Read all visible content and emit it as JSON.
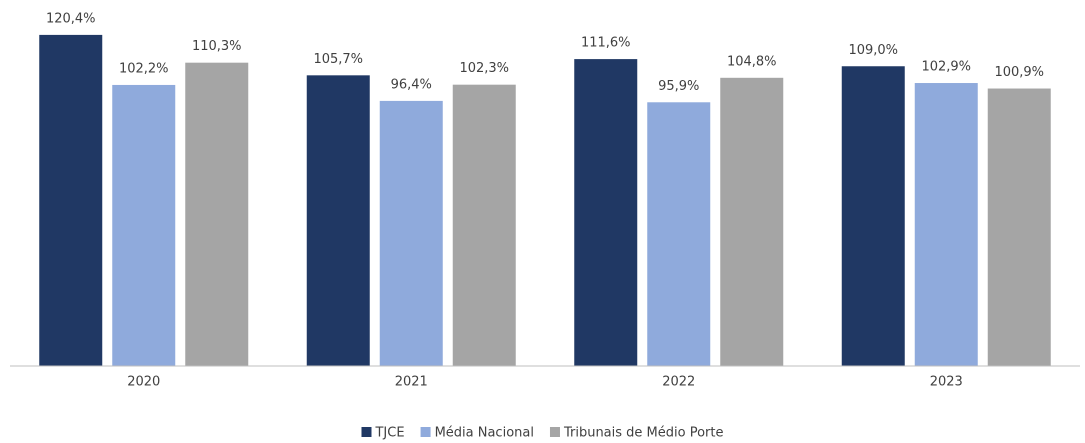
{
  "chart_data": {
    "type": "bar",
    "categories": [
      "2020",
      "2021",
      "2022",
      "2023"
    ],
    "series": [
      {
        "name": "TJCE",
        "color": "#203864",
        "values": [
          120.4,
          105.7,
          111.6,
          109.0
        ],
        "value_labels": [
          "120,4%",
          "105,7%",
          "111,6%",
          "109,0%"
        ]
      },
      {
        "name": "Média Nacional",
        "color": "#8faadc",
        "values": [
          102.2,
          96.4,
          95.9,
          102.9
        ],
        "value_labels": [
          "102,2%",
          "96,4%",
          "95,9%",
          "102,9%"
        ]
      },
      {
        "name": "Tribunais de Médio Porte",
        "color": "#a5a5a5",
        "values": [
          110.3,
          102.3,
          104.8,
          100.9
        ],
        "value_labels": [
          "110,3%",
          "102,3%",
          "104,8%",
          "100,9%"
        ]
      }
    ],
    "ylim": [
      0,
      130
    ],
    "legend": "bottom"
  }
}
